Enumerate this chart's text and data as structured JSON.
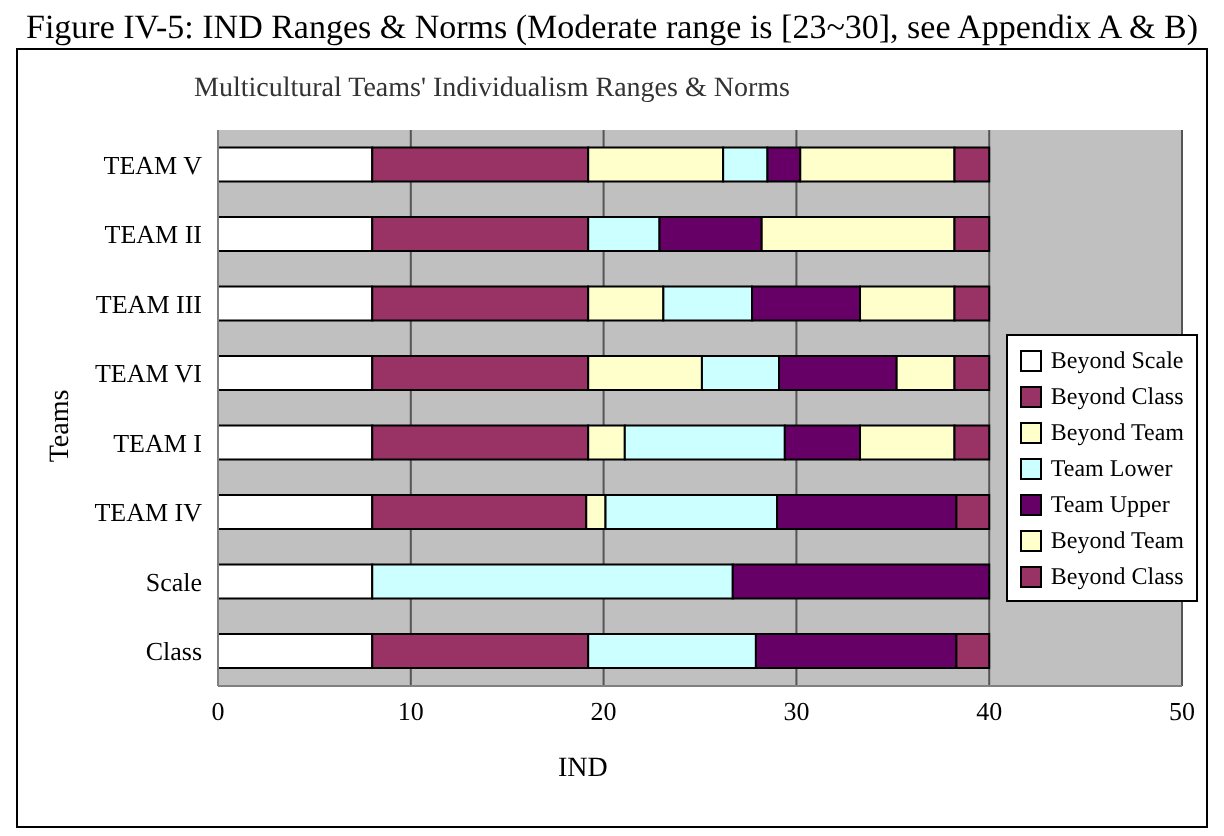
{
  "chart_data": {
    "type": "bar",
    "orientation": "horizontal",
    "stacked": true,
    "title": "Figure IV-5: IND Ranges & Norms (Moderate range is [23~30], see Appendix A & B)",
    "subtitle": "Multicultural Teams' Individualism Ranges & Norms",
    "xlabel": "IND",
    "ylabel": "Teams",
    "categories": [
      "TEAM V",
      "TEAM II",
      "TEAM III",
      "TEAM VI",
      "TEAM I",
      "TEAM IV",
      "Scale",
      "Class"
    ],
    "series": [
      {
        "name": "Beyond Scale",
        "color": "#ffffff",
        "values": [
          8,
          8,
          8,
          8,
          8,
          8,
          8,
          8
        ]
      },
      {
        "name": "Beyond Class",
        "color": "#993366",
        "values": [
          11.2,
          11.2,
          11.2,
          11.2,
          11.2,
          11.1,
          null,
          11.2
        ]
      },
      {
        "name": "Beyond Team",
        "color": "#ffffcc",
        "values": [
          7,
          null,
          3.9,
          5.9,
          1.9,
          1,
          null,
          null
        ]
      },
      {
        "name": "Team Lower",
        "color": "#ccffff",
        "values": [
          2.3,
          3.7,
          4.6,
          4,
          8.3,
          8.9,
          18.7,
          8.7
        ]
      },
      {
        "name": "Team Upper",
        "color": "#660066",
        "values": [
          1.7,
          5.3,
          5.6,
          6.1,
          3.9,
          9.3,
          13.3,
          10.4
        ]
      },
      {
        "name": "Beyond Team",
        "color": "#ffffcc",
        "values": [
          8,
          10,
          4.9,
          3,
          4.9,
          null,
          null,
          null
        ]
      },
      {
        "name": "Beyond Class",
        "color": "#993366",
        "values": [
          1.8,
          1.8,
          1.8,
          1.8,
          1.8,
          1.7,
          null,
          1.7
        ]
      }
    ],
    "xlim": [
      0,
      50
    ],
    "xticks": [
      0,
      10,
      20,
      30,
      40,
      50
    ],
    "grid": "x",
    "legend": "right"
  }
}
